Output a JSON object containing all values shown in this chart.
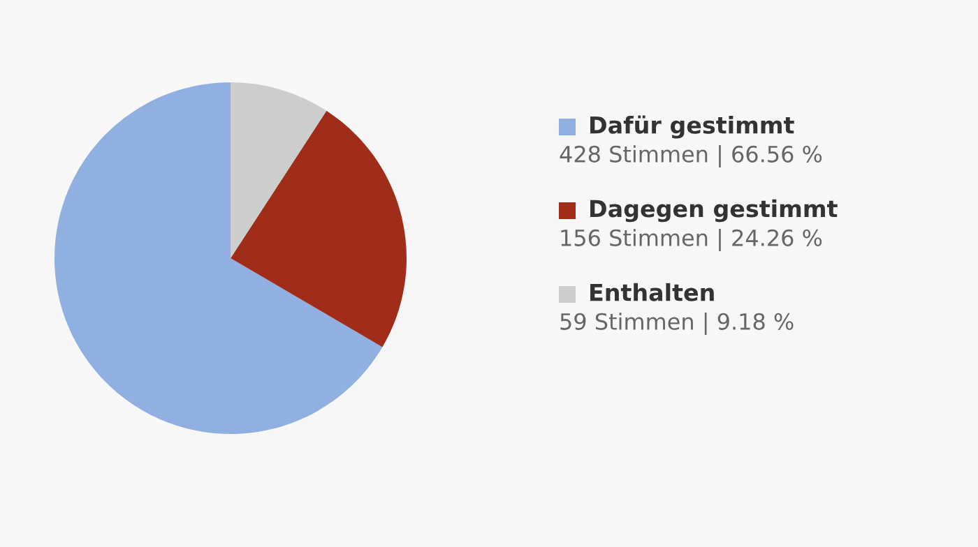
{
  "chart_data": {
    "type": "pie",
    "categories": [
      "Dafür gestimmt",
      "Dagegen gestimmt",
      "Enthalten"
    ],
    "values": [
      428,
      156,
      59
    ],
    "colors": [
      "#8fb0e0",
      "#a02d1a",
      "#cdcdcd"
    ],
    "value_labels": [
      "428 Stimmen | 66.56 %",
      "156 Stimmen | 24.26 %",
      "59 Stimmen | 9.18 %"
    ],
    "legend": "right"
  }
}
